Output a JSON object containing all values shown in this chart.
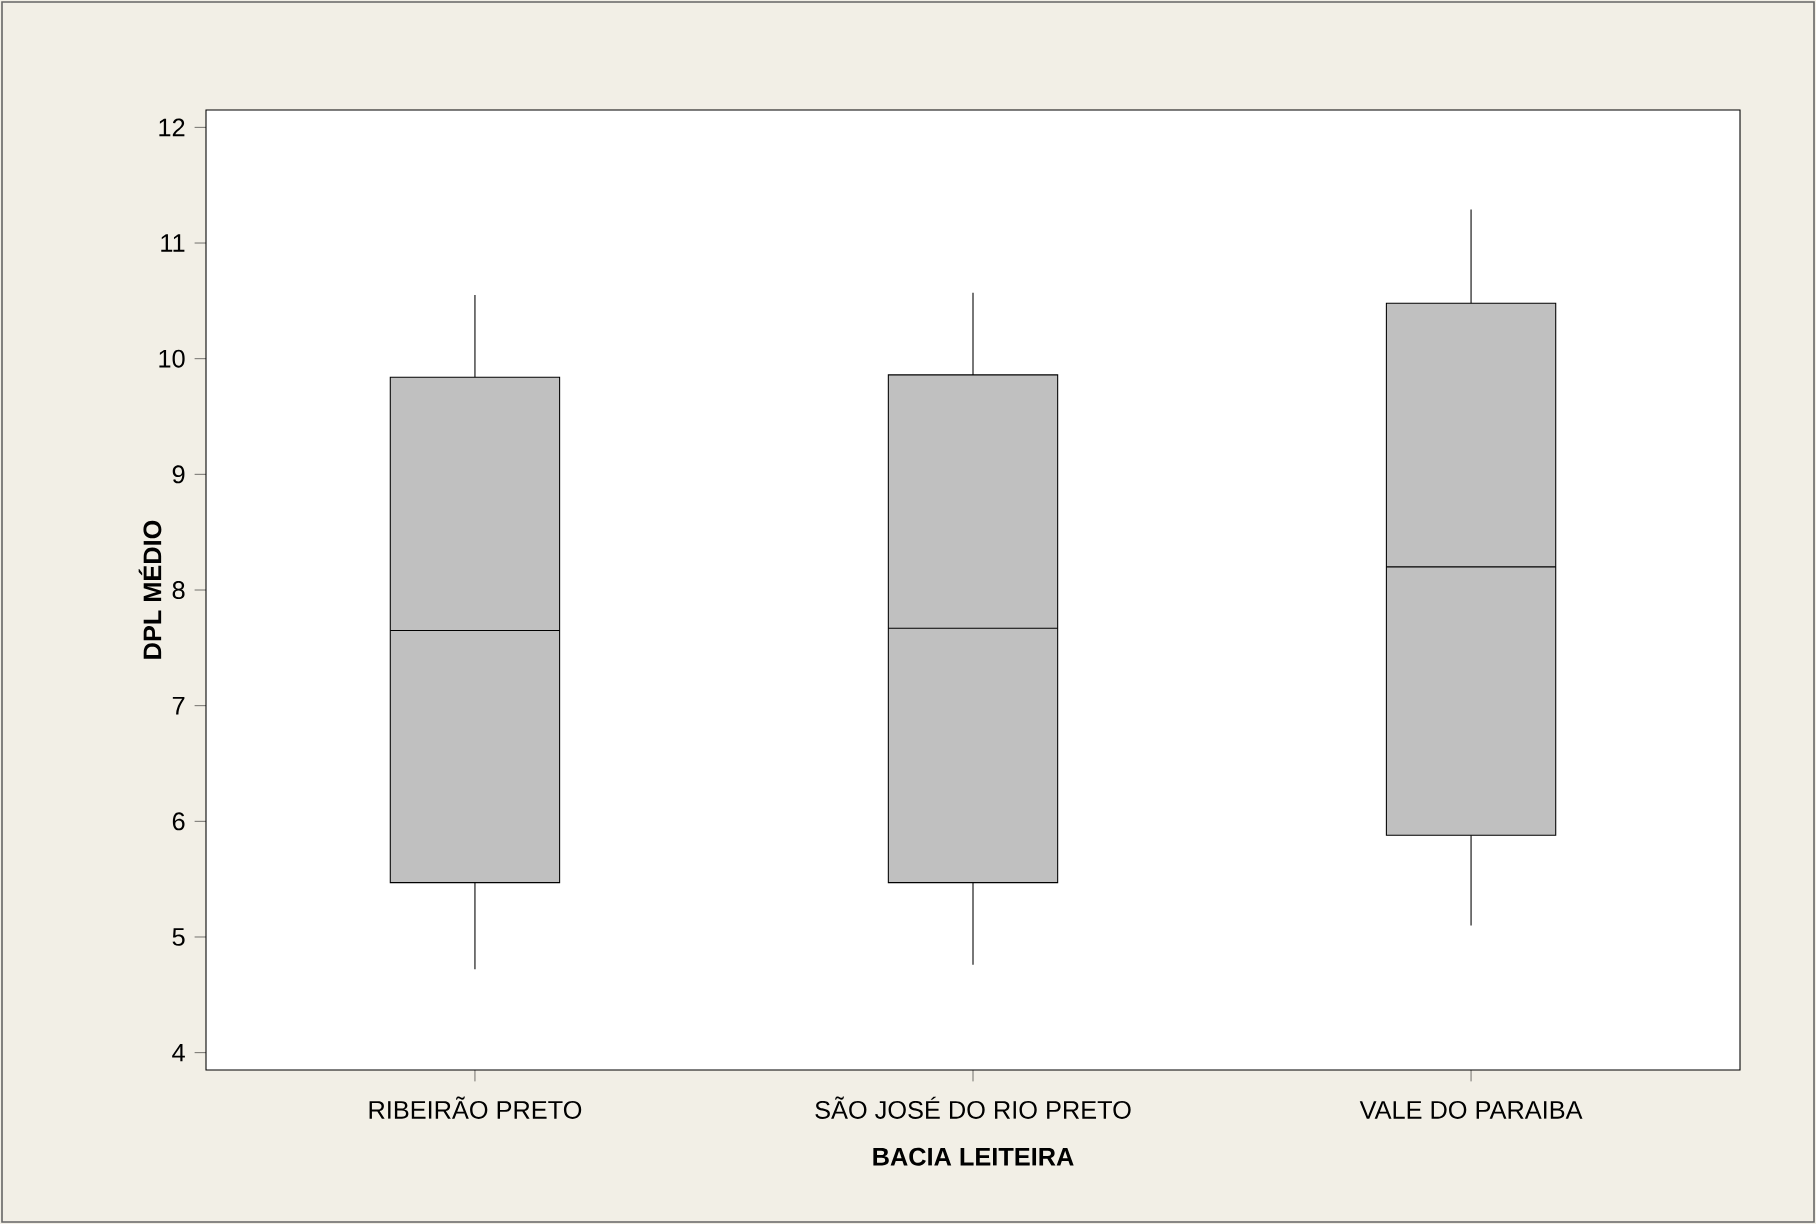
{
  "chart_data": {
    "type": "box",
    "xlabel": "BACIA LEITEIRA",
    "ylabel": "DPL MÉDIO",
    "categories": [
      "RIBEIRÃO PRETO",
      "SÃO JOSÉ DO RIO PRETO",
      "VALE DO PARAIBA"
    ],
    "series": [
      {
        "color": "#c0c0c0",
        "boxes": [
          {
            "low": 4.72,
            "q1": 5.47,
            "median": 7.65,
            "q3": 9.84,
            "high": 10.55
          },
          {
            "low": 4.76,
            "q1": 5.47,
            "median": 7.67,
            "q3": 9.86,
            "high": 10.57
          },
          {
            "low": 5.1,
            "q1": 5.88,
            "median": 8.2,
            "q3": 10.48,
            "high": 11.29
          }
        ]
      }
    ],
    "ylim": [
      3.85,
      12.15
    ],
    "yticks": [
      4,
      5,
      6,
      7,
      8,
      9,
      10,
      11,
      12
    ],
    "grid": false
  }
}
